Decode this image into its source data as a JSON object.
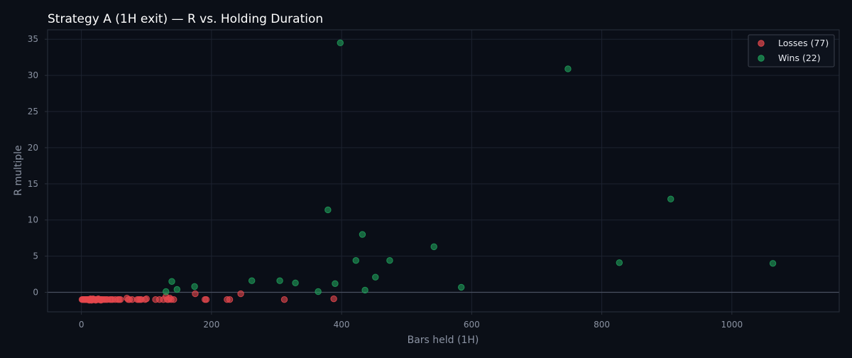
{
  "chart_data": {
    "type": "scatter",
    "title": "Strategy A (1H exit) — R vs. Holding Duration",
    "xlabel": "Bars held (1H)",
    "ylabel": "R multiple",
    "xlim": [
      -52,
      1165
    ],
    "ylim": [
      -2.7,
      36.3
    ],
    "xticks": [
      0,
      200,
      400,
      600,
      800,
      1000
    ],
    "yticks": [
      0,
      5,
      10,
      15,
      20,
      25,
      30,
      35
    ],
    "grid": true,
    "zero_line": true,
    "legend_position": "top-right",
    "colors": {
      "background": "#0b0f17",
      "plot_background": "#0a0e17",
      "grid": "#1d2330",
      "frame": "#2a303c",
      "zero_line": "#4a5161",
      "losses": "#e5484d",
      "wins": "#1fa05a"
    },
    "series": [
      {
        "name": "Losses (77)",
        "color": "#e5484d",
        "points": [
          [
            1,
            -1
          ],
          [
            2,
            -1
          ],
          [
            3,
            -1
          ],
          [
            4,
            -1
          ],
          [
            5,
            -1
          ],
          [
            6,
            -1
          ],
          [
            7,
            -1
          ],
          [
            8,
            -1
          ],
          [
            9,
            -1
          ],
          [
            10,
            -1
          ],
          [
            11,
            -1
          ],
          [
            12,
            -1
          ],
          [
            13,
            -1
          ],
          [
            14,
            -1
          ],
          [
            15,
            -1
          ],
          [
            16,
            -1
          ],
          [
            17,
            -1
          ],
          [
            18,
            -1
          ],
          [
            19,
            -1
          ],
          [
            20,
            -1
          ],
          [
            21,
            -1
          ],
          [
            22,
            -1
          ],
          [
            23,
            -1
          ],
          [
            24,
            -1
          ],
          [
            25,
            -1
          ],
          [
            26,
            -1
          ],
          [
            27,
            -1
          ],
          [
            28,
            -1
          ],
          [
            29,
            -1
          ],
          [
            30,
            -1
          ],
          [
            31,
            -1
          ],
          [
            32,
            -1
          ],
          [
            34,
            -1
          ],
          [
            36,
            -1
          ],
          [
            38,
            -1
          ],
          [
            46,
            -1
          ],
          [
            48,
            -1
          ],
          [
            52,
            -1
          ],
          [
            56,
            -1
          ],
          [
            58,
            -1
          ],
          [
            60,
            -1
          ],
          [
            70,
            -0.8
          ],
          [
            72,
            -1
          ],
          [
            74,
            -1
          ],
          [
            78,
            -1
          ],
          [
            86,
            -1
          ],
          [
            88,
            -1
          ],
          [
            90,
            -1
          ],
          [
            92,
            -1
          ],
          [
            98,
            -1
          ],
          [
            100,
            -0.9
          ],
          [
            114,
            -1
          ],
          [
            120,
            -1
          ],
          [
            126,
            -1
          ],
          [
            130,
            -0.6
          ],
          [
            132,
            -1
          ],
          [
            134,
            -1
          ],
          [
            136,
            -0.8
          ],
          [
            138,
            -1
          ],
          [
            142,
            -1
          ],
          [
            175,
            -0.2
          ],
          [
            190,
            -1
          ],
          [
            192,
            -1
          ],
          [
            224,
            -1
          ],
          [
            228,
            -1
          ],
          [
            245,
            -0.2
          ],
          [
            312,
            -1
          ],
          [
            388,
            -0.9
          ],
          [
            12,
            -1.1
          ],
          [
            14,
            -0.9
          ],
          [
            16,
            -1.1
          ],
          [
            18,
            -0.9
          ],
          [
            22,
            -1.1
          ],
          [
            26,
            -0.9
          ],
          [
            30,
            -1.1
          ],
          [
            40,
            -1
          ],
          [
            44,
            -1
          ]
        ]
      },
      {
        "name": "Wins (22)",
        "color": "#1fa05a",
        "points": [
          [
            130,
            0.1
          ],
          [
            139,
            1.5
          ],
          [
            147,
            0.4
          ],
          [
            174,
            0.8
          ],
          [
            262,
            1.6
          ],
          [
            305,
            1.6
          ],
          [
            329,
            1.3
          ],
          [
            364,
            0.1
          ],
          [
            379,
            11.4
          ],
          [
            390,
            1.2
          ],
          [
            398,
            34.5
          ],
          [
            422,
            4.4
          ],
          [
            432,
            8.0
          ],
          [
            436,
            0.3
          ],
          [
            452,
            2.1
          ],
          [
            474,
            4.4
          ],
          [
            542,
            6.3
          ],
          [
            584,
            0.7
          ],
          [
            748,
            30.9
          ],
          [
            827,
            4.1
          ],
          [
            906,
            12.9
          ],
          [
            1063,
            4.0
          ]
        ]
      }
    ]
  }
}
